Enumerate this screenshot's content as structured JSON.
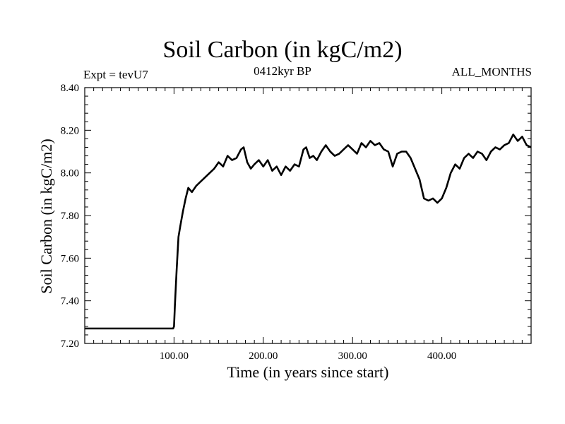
{
  "chart_data": {
    "type": "line",
    "title": "Soil Carbon (in kgC/m2)",
    "subtitle": "0412kyr BP",
    "experiment_label": "Expt = tevU7",
    "months_label": "ALL_MONTHS",
    "xlabel": "Time (in years since start)",
    "ylabel": "Soil Carbon (in kgC/m2)",
    "xlim": [
      0,
      500
    ],
    "ylim": [
      7.2,
      8.4
    ],
    "x_ticks": [
      100,
      200,
      300,
      400
    ],
    "x_tick_labels": [
      "100.00",
      "200.00",
      "300.00",
      "400.00"
    ],
    "y_ticks": [
      7.2,
      7.4,
      7.6,
      7.8,
      8.0,
      8.2,
      8.4
    ],
    "y_tick_labels": [
      "7.20",
      "7.40",
      "7.60",
      "7.80",
      "8.00",
      "8.20",
      "8.40"
    ],
    "grid": false,
    "series": [
      {
        "name": "Soil Carbon",
        "x": [
          0,
          99,
          100,
          101,
          103,
          105,
          107,
          110,
          113,
          116,
          120,
          125,
          130,
          135,
          140,
          145,
          150,
          155,
          160,
          165,
          170,
          175,
          178,
          182,
          186,
          190,
          195,
          200,
          205,
          210,
          215,
          220,
          225,
          230,
          235,
          240,
          245,
          248,
          252,
          256,
          260,
          265,
          270,
          275,
          280,
          285,
          290,
          295,
          300,
          305,
          310,
          315,
          320,
          325,
          330,
          335,
          340,
          345,
          350,
          355,
          360,
          365,
          370,
          375,
          380,
          385,
          390,
          395,
          400,
          405,
          410,
          415,
          420,
          425,
          430,
          435,
          440,
          445,
          450,
          455,
          460,
          465,
          470,
          475,
          480,
          485,
          490,
          495,
          500
        ],
        "values": [
          7.27,
          7.27,
          7.28,
          7.38,
          7.55,
          7.7,
          7.75,
          7.82,
          7.88,
          7.93,
          7.91,
          7.94,
          7.96,
          7.98,
          8.0,
          8.02,
          8.05,
          8.03,
          8.08,
          8.06,
          8.07,
          8.11,
          8.12,
          8.05,
          8.02,
          8.04,
          8.06,
          8.03,
          8.06,
          8.01,
          8.03,
          7.99,
          8.03,
          8.01,
          8.04,
          8.03,
          8.11,
          8.12,
          8.07,
          8.08,
          8.06,
          8.1,
          8.13,
          8.1,
          8.08,
          8.09,
          8.11,
          8.13,
          8.11,
          8.09,
          8.14,
          8.12,
          8.15,
          8.13,
          8.14,
          8.11,
          8.1,
          8.03,
          8.09,
          8.1,
          8.1,
          8.07,
          8.02,
          7.97,
          7.88,
          7.87,
          7.88,
          7.86,
          7.88,
          7.93,
          8.0,
          8.04,
          8.02,
          8.07,
          8.09,
          8.07,
          8.1,
          8.09,
          8.06,
          8.1,
          8.12,
          8.11,
          8.13,
          8.14,
          8.18,
          8.15,
          8.17,
          8.13,
          8.12
        ]
      }
    ]
  }
}
